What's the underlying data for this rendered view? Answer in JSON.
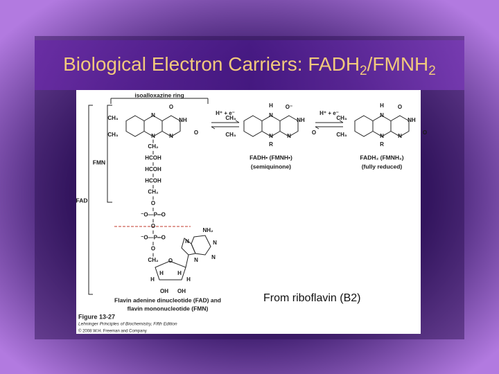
{
  "title": [
    "Biological Electron Carriers: FADH",
    "2",
    "/FMNH",
    "2"
  ],
  "caption": "From riboflavin (B2)",
  "figure": {
    "ring_label": "isoalloxazine ring",
    "fmn_label": "FMN",
    "fad_label": "FAD",
    "reagents": [
      "H⁺ + e⁻",
      "H⁺ + e⁻"
    ],
    "rings": [
      {
        "atoms": [
          "CH₃",
          "CH₃",
          "N",
          "N",
          "N",
          "NH",
          "O",
          "O"
        ]
      },
      {
        "atoms": [
          "CH₃",
          "CH₃",
          "N",
          "N",
          "N",
          "NH",
          "O⁻",
          "O",
          "H",
          "R"
        ],
        "name": "FADH• (FMNH•)",
        "state": "(semiquinone)"
      },
      {
        "atoms": [
          "CH₃",
          "CH₃",
          "N",
          "N",
          "N",
          "NH",
          "O",
          "O",
          "H",
          "R"
        ],
        "name": "FADH₂ (FMNH₂)",
        "state": "(fully reduced)"
      }
    ],
    "chain": [
      "CH₂",
      "HCOH",
      "HCOH",
      "HCOH",
      "CH₂",
      "O",
      "⁻O—P═O",
      "O",
      "⁻O—P═O",
      "O",
      "CH₂"
    ],
    "adenine": [
      "NH₂",
      "N",
      "N",
      "N",
      "N"
    ],
    "ribose": [
      "O",
      "H",
      "H",
      "H",
      "H",
      "OH",
      "OH"
    ],
    "description": [
      "Flavin adenine dinucleotide (FAD) and",
      "flavin mononucleotide (FMN)"
    ],
    "credits": [
      "Figure 13-27",
      "Lehninger Principles of Biochemistry, Fifth Edition",
      "© 2008 W.H. Freeman and Company"
    ]
  }
}
